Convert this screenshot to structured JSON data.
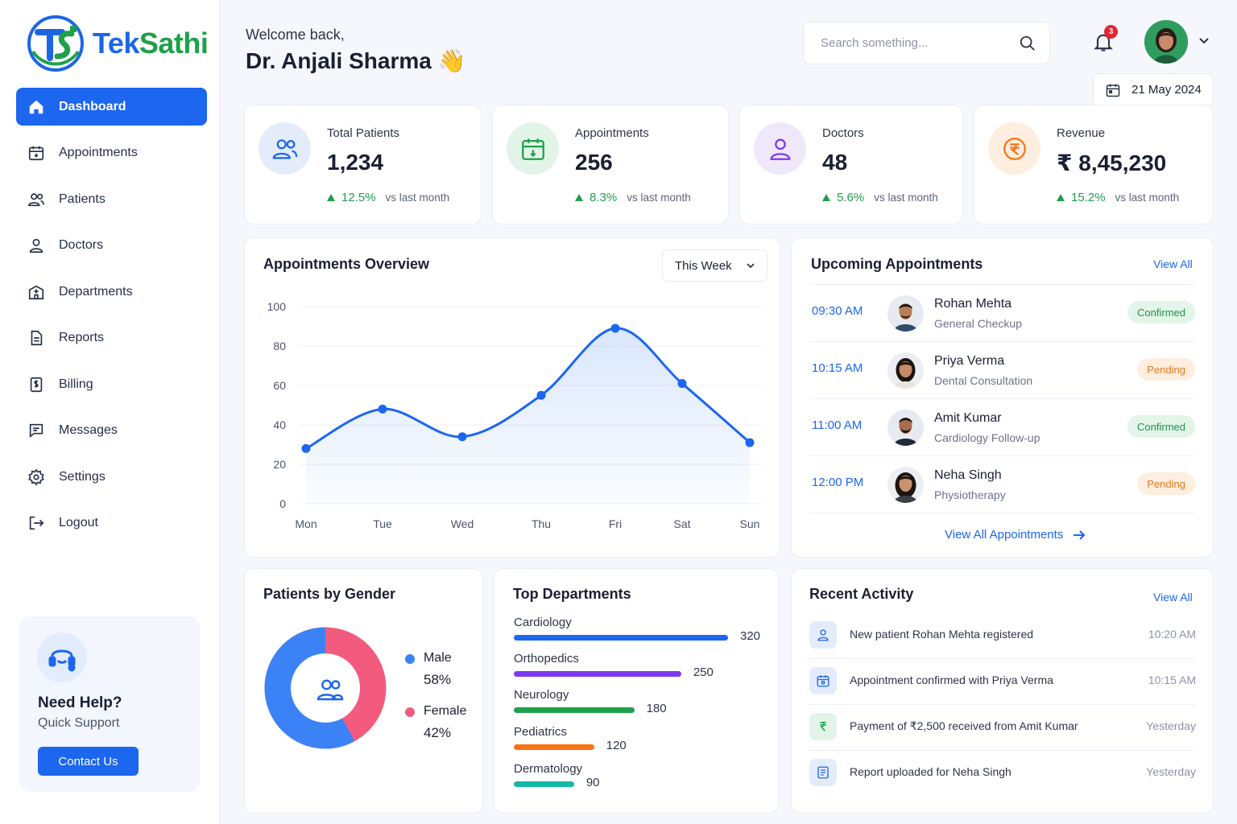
{
  "brand": {
    "name_part1": "Tek",
    "name_part2": "Sathi",
    "colors": {
      "primary": "#1c66f0",
      "green": "#1fa04a"
    }
  },
  "sidebar": {
    "items": [
      {
        "label": "Dashboard",
        "icon": "home-icon",
        "active": true
      },
      {
        "label": "Appointments",
        "icon": "calendar-icon"
      },
      {
        "label": "Patients",
        "icon": "users-icon"
      },
      {
        "label": "Doctors",
        "icon": "user-icon"
      },
      {
        "label": "Departments",
        "icon": "hospital-icon"
      },
      {
        "label": "Reports",
        "icon": "document-icon"
      },
      {
        "label": "Billing",
        "icon": "billing-icon"
      },
      {
        "label": "Messages",
        "icon": "message-icon"
      },
      {
        "label": "Settings",
        "icon": "gear-icon"
      },
      {
        "label": "Logout",
        "icon": "logout-icon"
      }
    ],
    "help": {
      "title": "Need Help?",
      "subtitle": "Quick Support",
      "button": "Contact Us"
    }
  },
  "header": {
    "welcome": "Welcome back,",
    "name": "Dr. Anjali Sharma",
    "wave": "👋",
    "search_placeholder": "Search something...",
    "notification_count": "3",
    "date": "21 May 2024"
  },
  "stats": [
    {
      "label": "Total Patients",
      "value": "1,234",
      "change": "12.5%",
      "compare": "vs last month",
      "icon": "users-icon"
    },
    {
      "label": "Appointments",
      "value": "256",
      "change": "8.3%",
      "compare": "vs last month",
      "icon": "calendar-icon"
    },
    {
      "label": "Doctors",
      "value": "48",
      "change": "5.6%",
      "compare": "vs last month",
      "icon": "user-icon"
    },
    {
      "label": "Revenue",
      "value": "₹ 8,45,230",
      "change": "15.2%",
      "compare": "vs last month",
      "icon": "rupee-icon"
    }
  ],
  "overview": {
    "title": "Appointments Overview",
    "period": "This Week"
  },
  "chart_data": {
    "type": "area",
    "categories": [
      "Mon",
      "Tue",
      "Wed",
      "Thu",
      "Fri",
      "Sat",
      "Sun"
    ],
    "values": [
      28,
      48,
      34,
      55,
      89,
      61,
      31
    ],
    "ylim": [
      0,
      100
    ],
    "yticks": [
      0,
      20,
      40,
      60,
      80,
      100
    ],
    "grid": true,
    "color": "#1c66f0"
  },
  "upcoming": {
    "title": "Upcoming Appointments",
    "view_all": "View All",
    "footer_link": "View All Appointments",
    "items": [
      {
        "time": "09:30 AM",
        "name": "Rohan Mehta",
        "type": "General Checkup",
        "status": "Confirmed"
      },
      {
        "time": "10:15 AM",
        "name": "Priya Verma",
        "type": "Dental Consultation",
        "status": "Pending"
      },
      {
        "time": "11:00 AM",
        "name": "Amit Kumar",
        "type": "Cardiology Follow-up",
        "status": "Confirmed"
      },
      {
        "time": "12:00 PM",
        "name": "Neha Singh",
        "type": "Physiotherapy",
        "status": "Pending"
      }
    ]
  },
  "gender": {
    "title": "Patients by Gender",
    "male_label": "Male",
    "male_value": "58%",
    "male_fraction": 0.58,
    "male_color": "#3b82f6",
    "female_label": "Female",
    "female_value": "42%",
    "female_fraction": 0.42,
    "female_color": "#f25b7d"
  },
  "departments": {
    "title": "Top Departments",
    "items": [
      {
        "name": "Cardiology",
        "value": "320",
        "amount": 320,
        "color": "#1c66f0"
      },
      {
        "name": "Orthopedics",
        "value": "250",
        "amount": 250,
        "color": "#7c3aed"
      },
      {
        "name": "Neurology",
        "value": "180",
        "amount": 180,
        "color": "#1fa04a"
      },
      {
        "name": "Pediatrics",
        "value": "120",
        "amount": 120,
        "color": "#f97316"
      },
      {
        "name": "Dermatology",
        "value": "90",
        "amount": 90,
        "color": "#14b8a6"
      }
    ]
  },
  "activity": {
    "title": "Recent Activity",
    "view_all": "View All",
    "items": [
      {
        "text": "New patient Rohan Mehta registered",
        "time": "10:20 AM",
        "icon": "user-icon"
      },
      {
        "text": "Appointment confirmed with Priya Verma",
        "time": "10:15 AM",
        "icon": "calendar-icon"
      },
      {
        "text": "Payment of ₹2,500 received from Amit Kumar",
        "time": "Yesterday",
        "icon": "rupee-icon"
      },
      {
        "text": "Report uploaded for Neha Singh",
        "time": "Yesterday",
        "icon": "report-icon"
      }
    ]
  }
}
